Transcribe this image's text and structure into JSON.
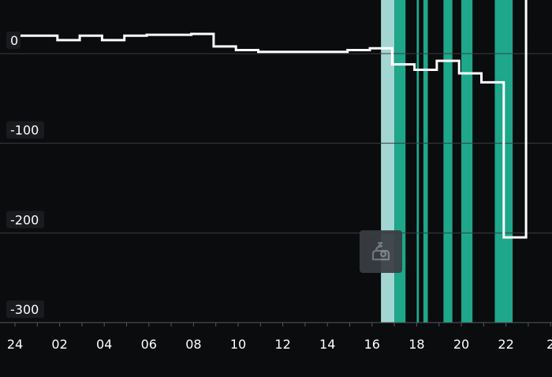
{
  "chart_data": {
    "type": "line",
    "line_style": "step",
    "title": "",
    "xlabel": "",
    "ylabel": "",
    "x_tick_labels": [
      "24",
      "02",
      "04",
      "06",
      "08",
      "10",
      "12",
      "14",
      "16",
      "18",
      "20",
      "22",
      "2"
    ],
    "y_tick_labels": [
      "0",
      "-100",
      "-200",
      "-300"
    ],
    "x_range_hours": [
      0,
      24
    ],
    "ylim": [
      -300,
      20
    ],
    "grid": "horizontal",
    "series": [
      {
        "color": "#ffffff",
        "points": [
          [
            0.0,
            20
          ],
          [
            1.9,
            20
          ],
          [
            1.9,
            15
          ],
          [
            2.9,
            15
          ],
          [
            2.9,
            20
          ],
          [
            3.9,
            20
          ],
          [
            3.9,
            15
          ],
          [
            4.9,
            15
          ],
          [
            4.9,
            20
          ],
          [
            5.9,
            20
          ],
          [
            5.9,
            21
          ],
          [
            7.9,
            21
          ],
          [
            7.9,
            22
          ],
          [
            8.9,
            22
          ],
          [
            8.9,
            8
          ],
          [
            9.9,
            8
          ],
          [
            9.9,
            4
          ],
          [
            10.9,
            4
          ],
          [
            10.9,
            2
          ],
          [
            14.9,
            2
          ],
          [
            14.9,
            4
          ],
          [
            15.9,
            4
          ],
          [
            15.9,
            6
          ],
          [
            16.9,
            6
          ],
          [
            16.9,
            -12
          ],
          [
            17.9,
            -12
          ],
          [
            17.9,
            -18
          ],
          [
            18.9,
            -18
          ],
          [
            18.9,
            -8
          ],
          [
            19.9,
            -8
          ],
          [
            19.9,
            -22
          ],
          [
            20.9,
            -22
          ],
          [
            20.9,
            -32
          ],
          [
            21.9,
            -32
          ],
          [
            21.9,
            -205
          ],
          [
            22.9,
            -205
          ],
          [
            22.9,
            80
          ]
        ]
      }
    ],
    "bands": [
      {
        "start_hour": 16.4,
        "end_hour": 17.0,
        "color": "#a3d6d3"
      },
      {
        "start_hour": 17.0,
        "end_hour": 17.5,
        "color": "#1ea78a"
      },
      {
        "start_hour": 18.0,
        "end_hour": 18.1,
        "color": "#1ea78a"
      },
      {
        "start_hour": 18.3,
        "end_hour": 18.5,
        "color": "#1ea78a"
      },
      {
        "start_hour": 19.2,
        "end_hour": 19.6,
        "color": "#1ea78a"
      },
      {
        "start_hour": 20.0,
        "end_hour": 20.5,
        "color": "#1ea78a"
      },
      {
        "start_hour": 21.5,
        "end_hour": 22.3,
        "color": "#1ea78a"
      }
    ],
    "colors": {
      "background": "#0b0c0e",
      "grid": "#3a3c40",
      "axis": "#55585c",
      "tick_label": "#ffffff",
      "y_label_bg": "#1a1b1e"
    }
  },
  "overlay": {
    "icon": "sleep-icon"
  }
}
